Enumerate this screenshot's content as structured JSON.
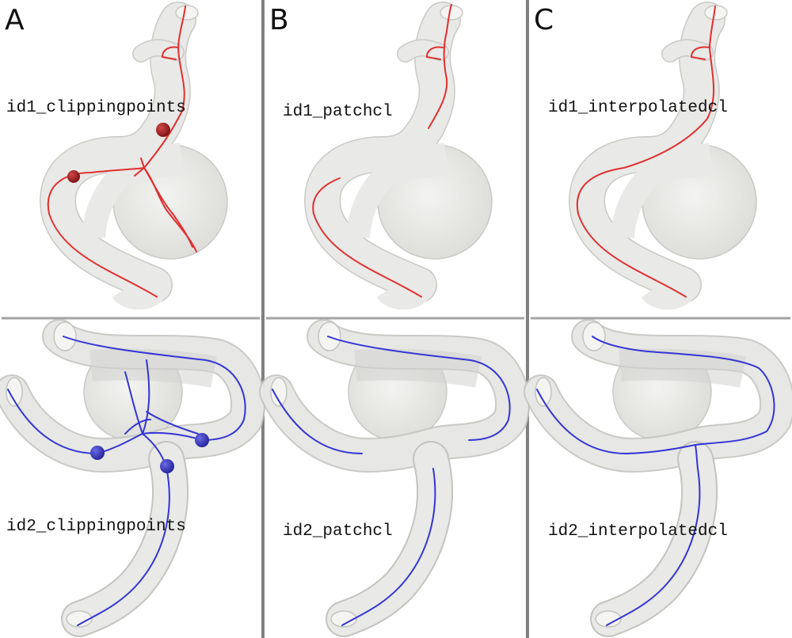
{
  "columns": [
    {
      "letter": "A",
      "top_label": "id1_clippingpoints",
      "bottom_label": "id2_clippingpoints"
    },
    {
      "letter": "B",
      "top_label": "id1_patchcl",
      "bottom_label": "id2_patchcl"
    },
    {
      "letter": "C",
      "top_label": "id1_interpolatedcl",
      "bottom_label": "id2_interpolatedcl"
    }
  ],
  "colors": {
    "vessel_fill": "#e9e9e7",
    "vessel_stroke": "#c9c9c6",
    "centerline_top": "#e03030",
    "centerline_bottom": "#3434d6",
    "clip_point_top": "#9c1d1d",
    "clip_point_bottom": "#3535b8",
    "divider": "#808080"
  }
}
